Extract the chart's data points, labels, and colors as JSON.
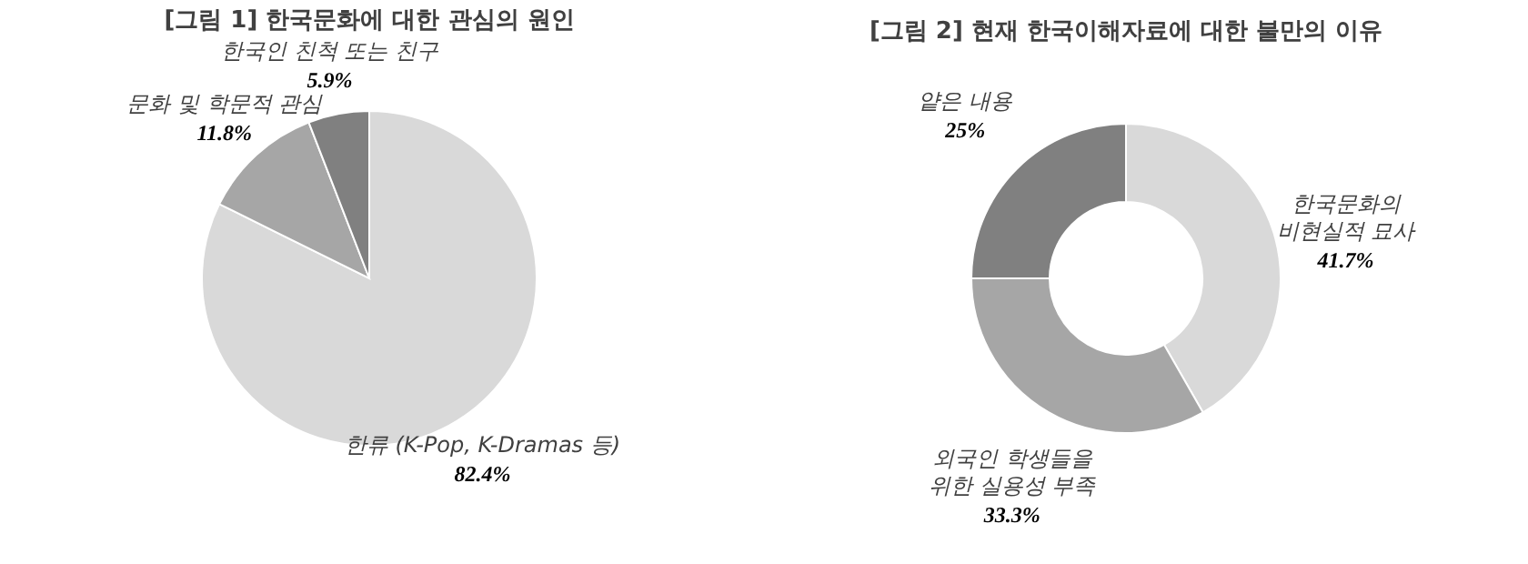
{
  "chart_data": [
    {
      "type": "pie",
      "title": "[그림 1] 한국문화에 대한 관심의 원인",
      "categories": [
        "한류 (K-Pop, K-Dramas 등)",
        "문화 및 학문적 관심",
        "한국인 친척 또는 친구"
      ],
      "values": [
        82.4,
        11.8,
        5.9
      ],
      "colors": [
        "#d9d9d9",
        "#a6a6a6",
        "#808080"
      ],
      "value_labels": [
        "82.4%",
        "11.8%",
        "5.9%"
      ]
    },
    {
      "type": "donut",
      "title": "[그림 2] 현재 한국이해자료에 대한 불만의 이유",
      "categories": [
        "한국문화의 비현실적 묘사",
        "외국인 학생들을 위한 실용성 부족",
        "얕은 내용"
      ],
      "values": [
        41.7,
        33.3,
        25
      ],
      "colors": [
        "#d9d9d9",
        "#a6a6a6",
        "#808080"
      ],
      "value_labels": [
        "41.7%",
        "33.3%",
        "25%"
      ]
    }
  ]
}
